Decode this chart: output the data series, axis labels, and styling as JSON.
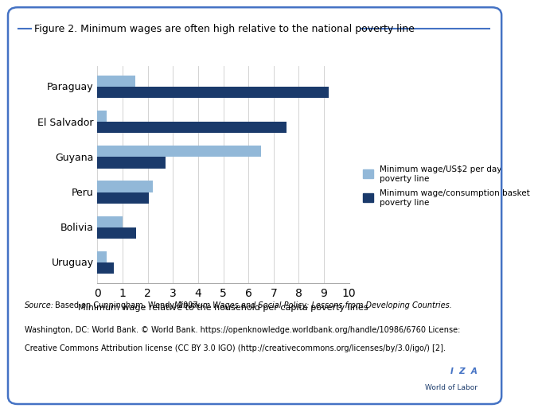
{
  "title": "Figure 2. Minimum wages are often high relative to the national poverty line",
  "countries": [
    "Uruguay",
    "Bolivia",
    "Peru",
    "Guyana",
    "El Salvador",
    "Paraguay"
  ],
  "us2_values": [
    0.35,
    1.0,
    2.2,
    6.5,
    0.35,
    1.5
  ],
  "basket_values": [
    0.65,
    1.55,
    2.05,
    2.7,
    7.5,
    9.2
  ],
  "color_light": "#92b8d8",
  "color_dark": "#1a3a6b",
  "xlabel": "Minimum wage relative to the household per capita poverty lines",
  "legend_light": "Minimum wage/US$2 per day\npoverty line",
  "legend_dark": "Minimum wage/consumption basket\npoverty line",
  "xlim": [
    0,
    10
  ],
  "xticks": [
    0,
    1,
    2,
    3,
    4,
    5,
    6,
    7,
    8,
    9,
    10
  ],
  "source_text_plain": "Source: Based on Cunningham, Wendy. 2007. ",
  "source_text_italic": "Minimum Wages and Social Policy: Lessons from Developing Countries.",
  "source_text_rest": "\nWashington, DC: World Bank. © World Bank. https://openknowledge.worldbank.org/handle/10986/6760 License:\nCreative Commons Attribution license (CC BY 3.0 IGO) (http://creativecommons.org/licenses/by/3.0/igo/) [2].",
  "border_color": "#4472c4",
  "background_color": "#ffffff",
  "title_color": "#000000",
  "bar_height": 0.32
}
